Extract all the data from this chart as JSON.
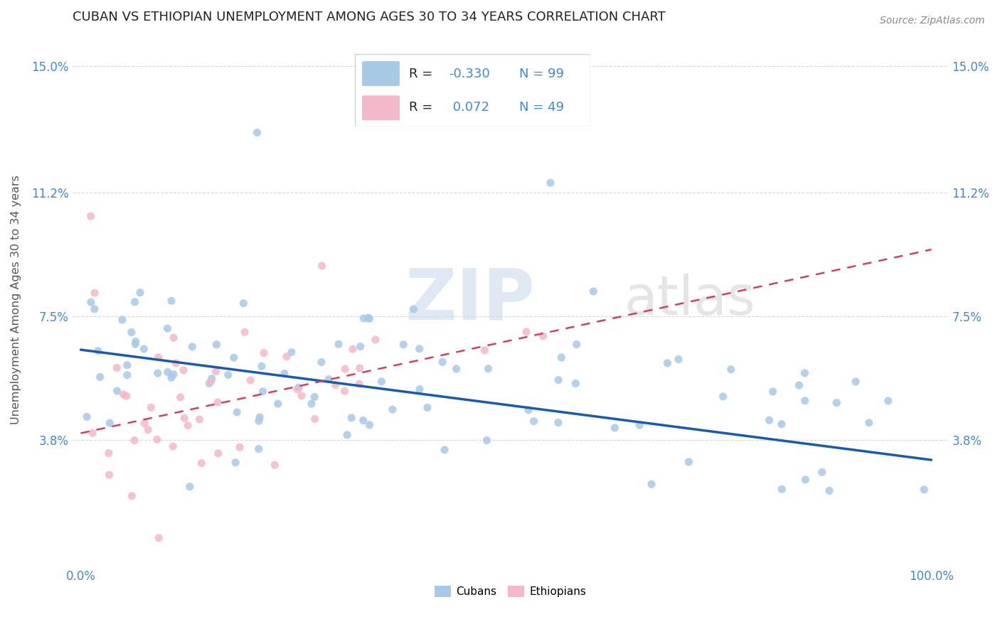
{
  "title": "CUBAN VS ETHIOPIAN UNEMPLOYMENT AMONG AGES 30 TO 34 YEARS CORRELATION CHART",
  "source": "Source: ZipAtlas.com",
  "ylabel": "Unemployment Among Ages 30 to 34 years",
  "xmin": 0.0,
  "xmax": 100.0,
  "ymin": 0.0,
  "ymax": 16.0,
  "cuban_color": "#a8c8e8",
  "ethiopian_color": "#f4b8c8",
  "trend_cuban_color": "#1a5aaa",
  "trend_ethiopian_color": "#d04060",
  "R_cuban": -0.33,
  "N_cuban": 99,
  "R_ethiopian": 0.072,
  "N_ethiopian": 49,
  "background_color": "#ffffff",
  "grid_color": "#cccccc",
  "title_color": "#333333",
  "axis_label_color": "#555555",
  "tick_color": "#4488cc",
  "watermark_ZIP_color": "#c8d8e8",
  "watermark_atlas_color": "#d8d8d8"
}
